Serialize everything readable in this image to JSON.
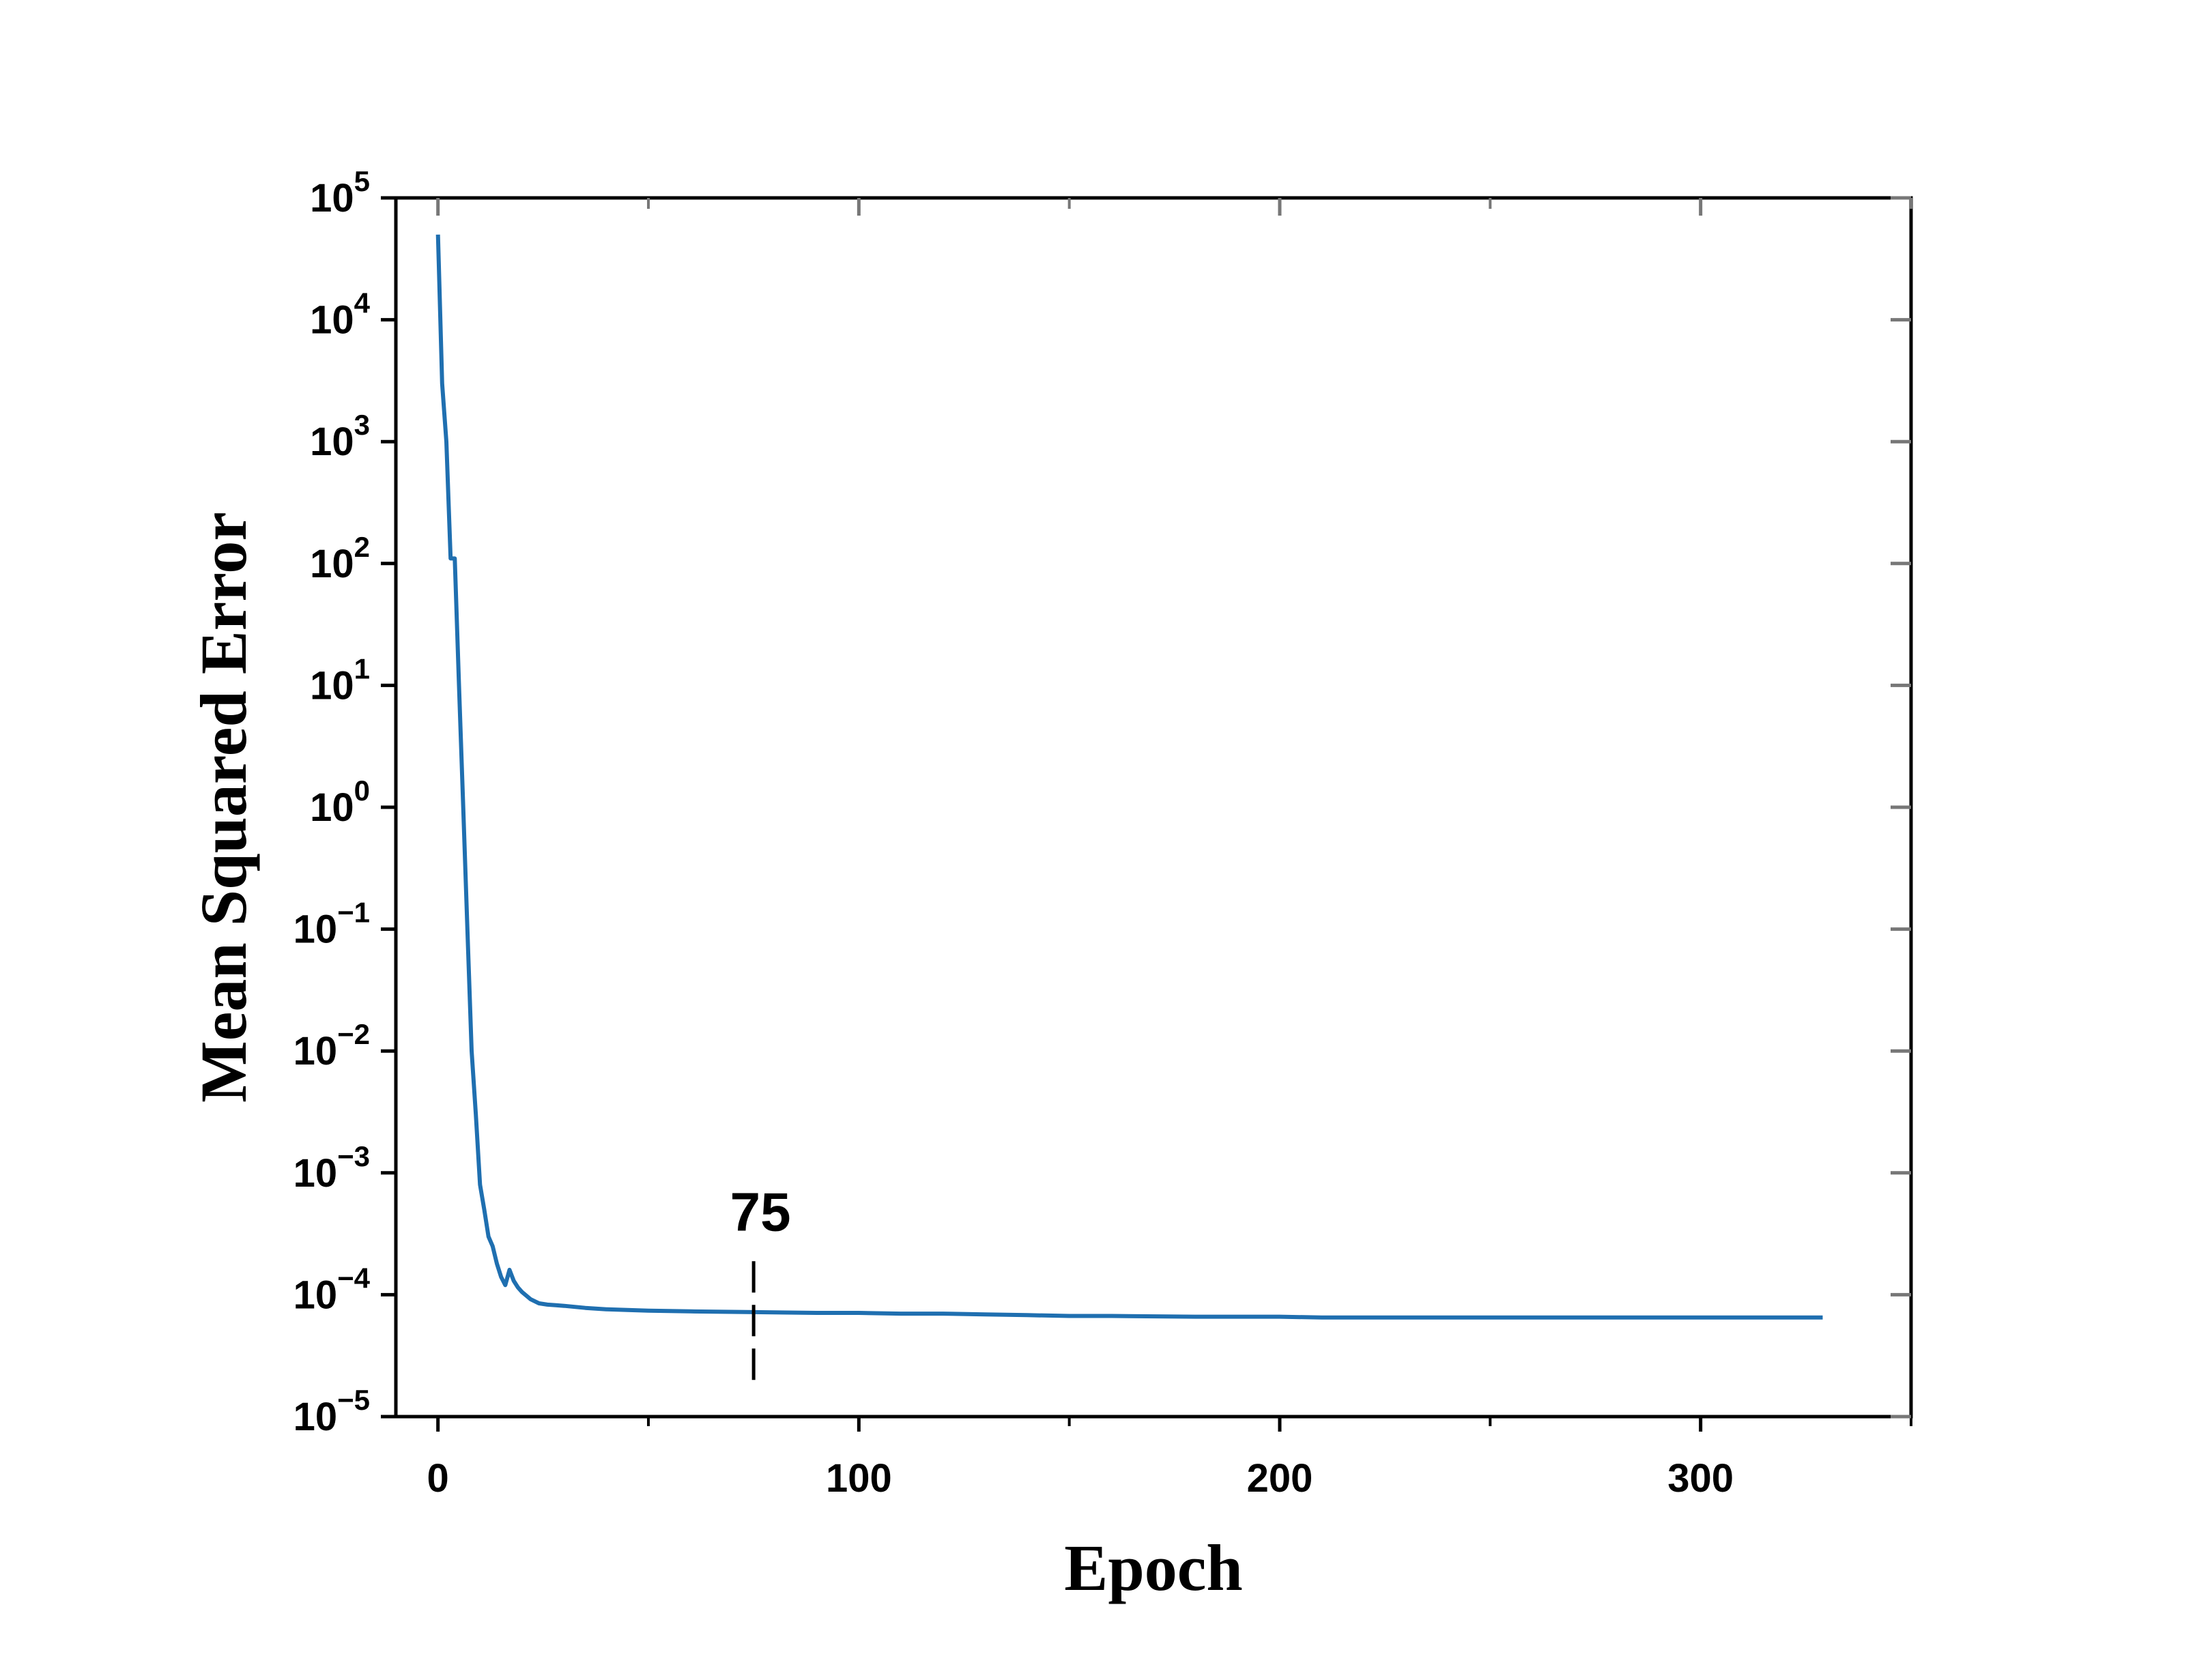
{
  "chart_data": {
    "type": "line",
    "title": "",
    "xlabel": "Epoch",
    "ylabel": "Mean Squared Error",
    "xlim": [
      -10,
      350
    ],
    "ylim": [
      1e-05,
      100000
    ],
    "yscale": "log",
    "grid": false,
    "x_ticks": [
      0,
      100,
      200,
      300
    ],
    "x_tick_labels": [
      "0",
      "100",
      "200",
      "300"
    ],
    "y_ticks": [
      1e-05,
      0.0001,
      0.001,
      0.01,
      0.1,
      1,
      10,
      100,
      1000,
      10000,
      100000
    ],
    "y_tick_labels": [
      {
        "base": "10",
        "exp": "−5"
      },
      {
        "base": "10",
        "exp": "−4"
      },
      {
        "base": "10",
        "exp": "−3"
      },
      {
        "base": "10",
        "exp": "−2"
      },
      {
        "base": "10",
        "exp": "−1"
      },
      {
        "base": "10",
        "exp": "0"
      },
      {
        "base": "10",
        "exp": "1"
      },
      {
        "base": "10",
        "exp": "2"
      },
      {
        "base": "10",
        "exp": "3"
      },
      {
        "base": "10",
        "exp": "4"
      },
      {
        "base": "10",
        "exp": "5"
      }
    ],
    "series": [
      {
        "color": "#1f6fb0",
        "x": [
          0,
          1,
          2,
          3,
          4,
          5,
          6,
          7,
          8,
          9,
          10,
          11,
          12,
          13,
          14,
          15,
          16,
          17,
          18,
          19,
          20,
          22,
          24,
          26,
          28,
          30,
          35,
          40,
          45,
          50,
          60,
          75,
          90,
          100,
          110,
          120,
          130,
          140,
          150,
          160,
          180,
          200,
          210,
          220,
          240,
          260,
          280,
          300,
          320,
          329
        ],
        "y": [
          50000,
          3000,
          1000,
          110,
          110,
          10,
          1,
          0.1,
          0.01,
          0.003,
          0.0008,
          0.0005,
          0.0003,
          0.00025,
          0.00018,
          0.00014,
          0.00012,
          0.00016,
          0.00013,
          0.000115,
          0.000105,
          9.2e-05,
          8.5e-05,
          8.3e-05,
          8.2e-05,
          8.1e-05,
          7.8e-05,
          7.6e-05,
          7.5e-05,
          7.4e-05,
          7.3e-05,
          7.2e-05,
          7.1e-05,
          7.1e-05,
          7e-05,
          7e-05,
          6.9e-05,
          6.8e-05,
          6.7e-05,
          6.7e-05,
          6.6e-05,
          6.6e-05,
          6.5e-05,
          6.5e-05,
          6.5e-05,
          6.5e-05,
          6.5e-05,
          6.5e-05,
          6.5e-05,
          6.5e-05
        ]
      }
    ],
    "annotations": [
      {
        "text": "75",
        "x": 75,
        "y_from": 2e-05,
        "y_to": 0.0002,
        "style": "dashed"
      }
    ]
  }
}
